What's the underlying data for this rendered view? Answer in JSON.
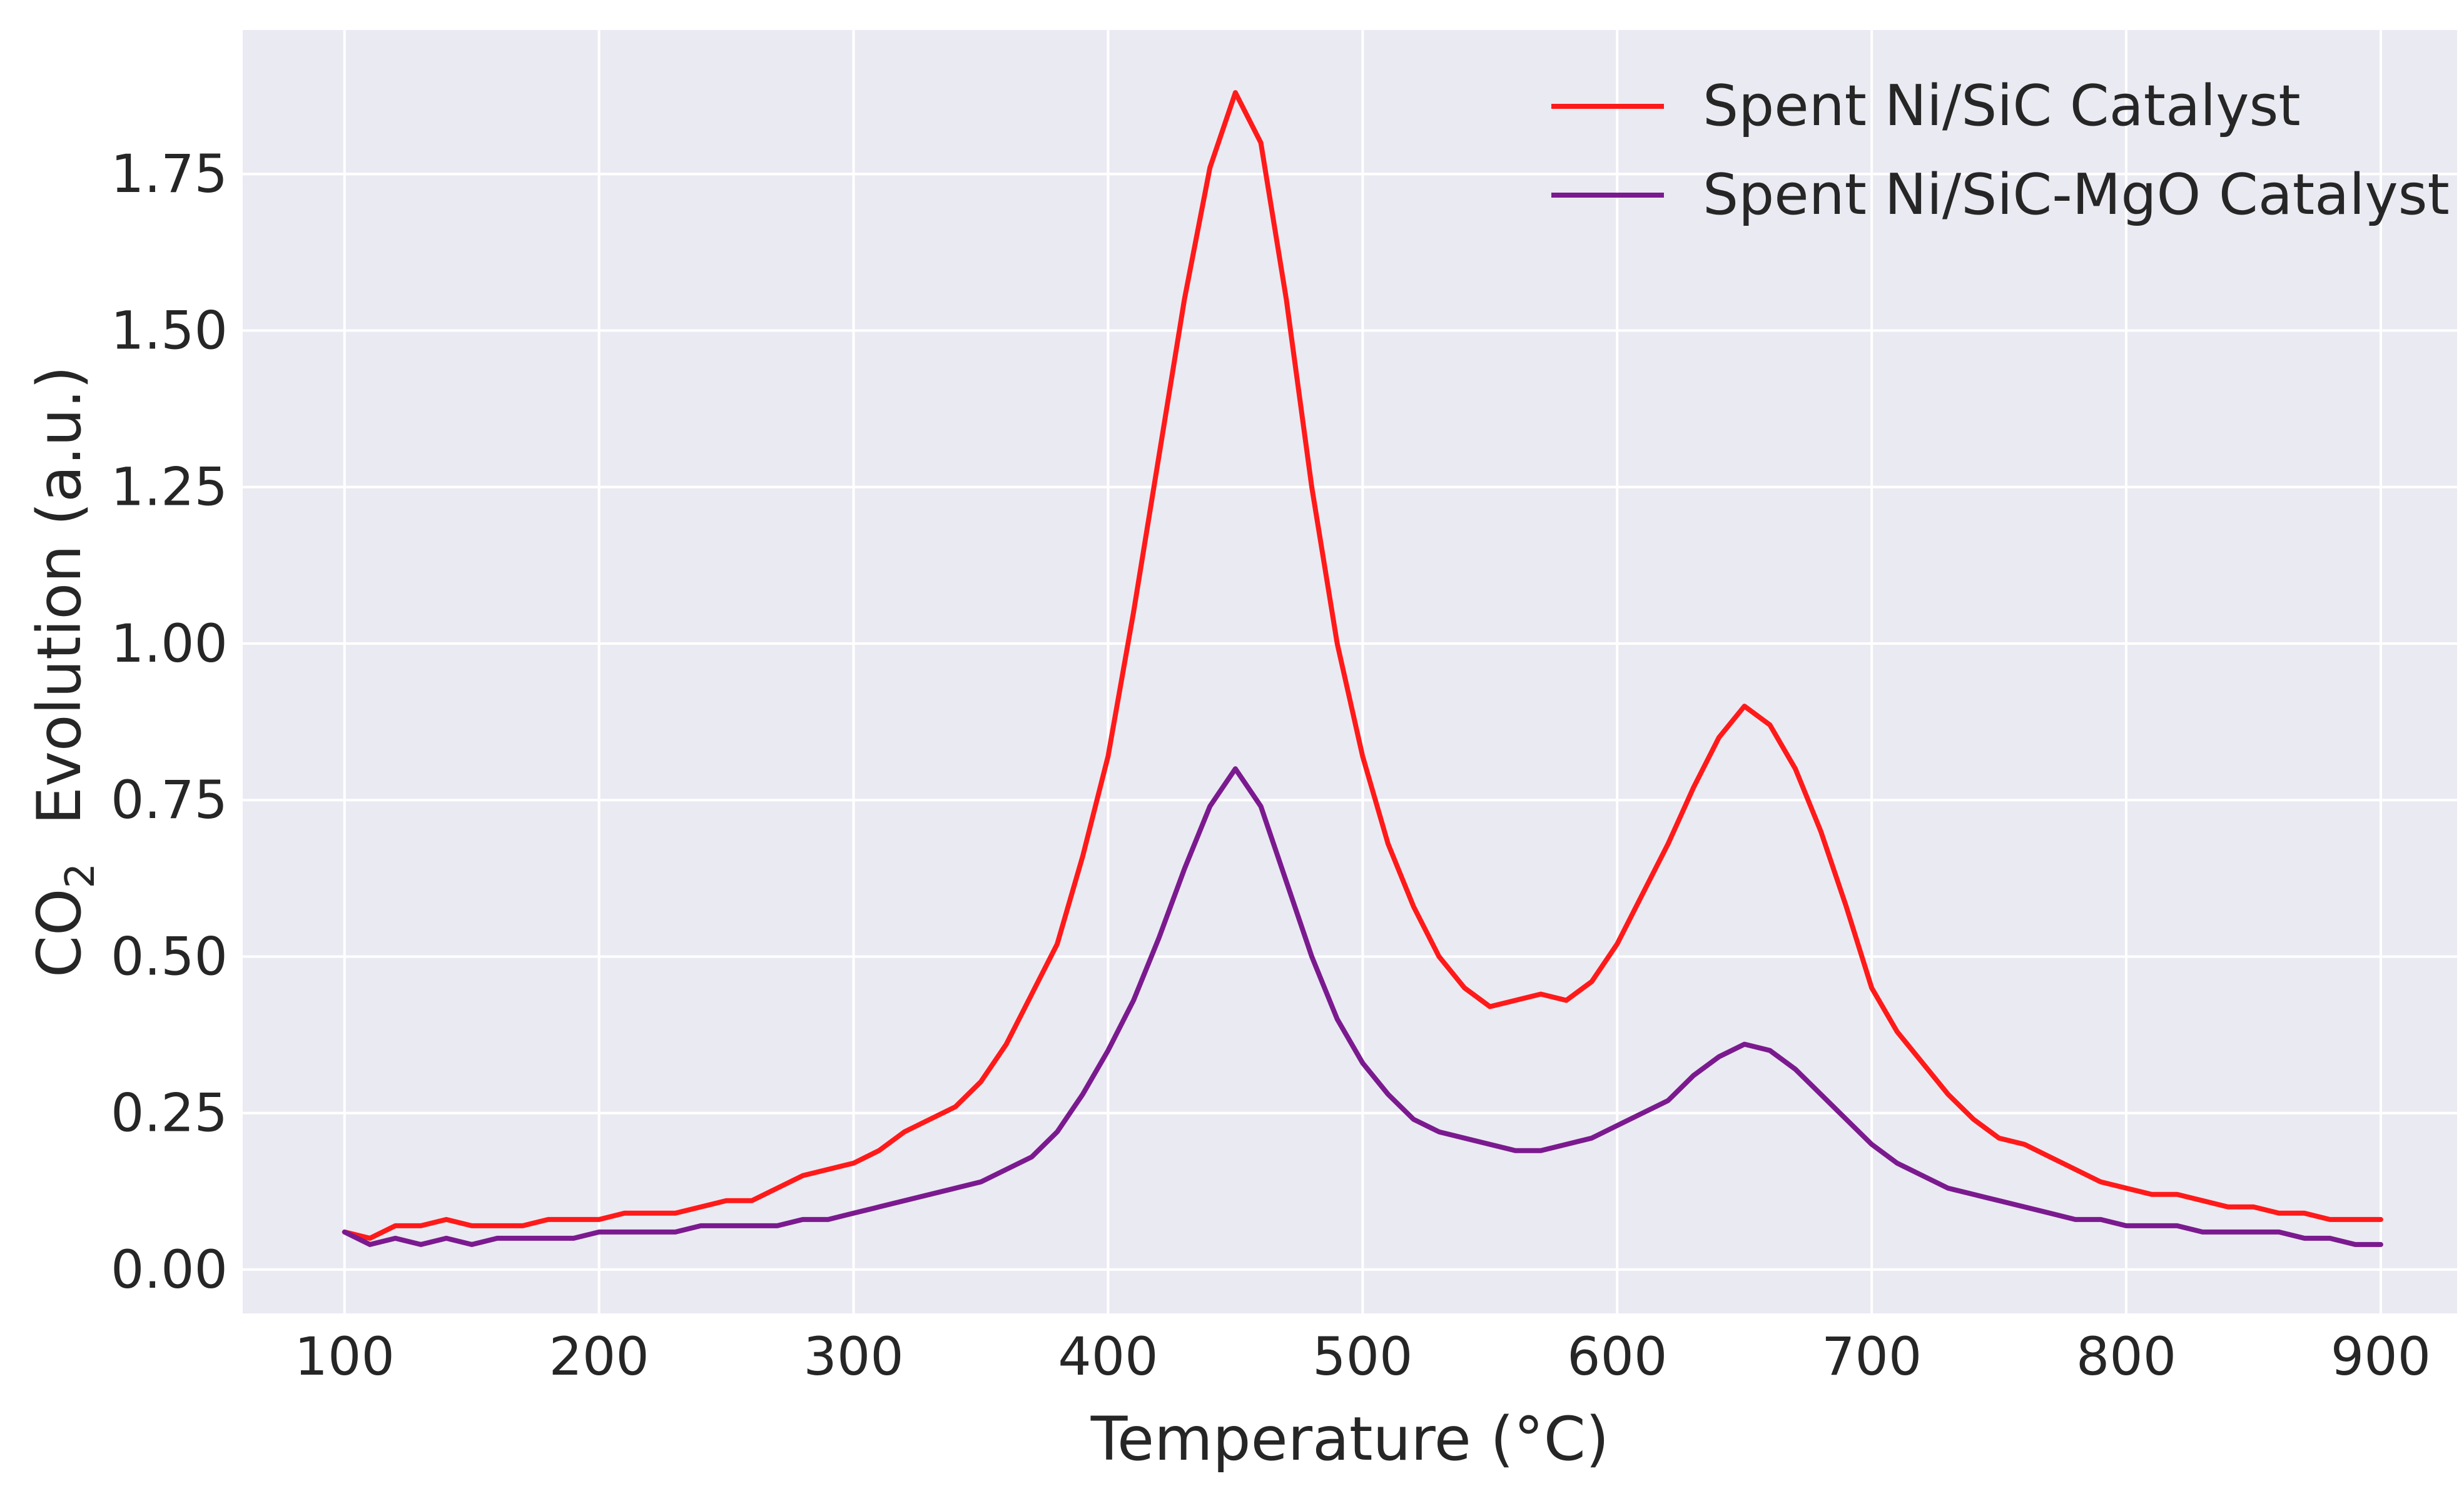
{
  "chart_data": {
    "type": "line",
    "title": "",
    "xlabel": "Temperature (°C)",
    "ylabel": {
      "prefix": "CO",
      "subscript": "2",
      "suffix": "  Evolution (a.u.)"
    },
    "xlim": [
      60,
      930
    ],
    "ylim": [
      -0.07,
      1.98
    ],
    "xticks": [
      100,
      200,
      300,
      400,
      500,
      600,
      700,
      800,
      900
    ],
    "xtick_labels": [
      "100",
      "200",
      "300",
      "400",
      "500",
      "600",
      "700",
      "800",
      "900"
    ],
    "yticks": [
      0.0,
      0.25,
      0.5,
      0.75,
      1.0,
      1.25,
      1.5,
      1.75
    ],
    "ytick_labels": [
      "0.00",
      "0.25",
      "0.50",
      "0.75",
      "1.00",
      "1.25",
      "1.50",
      "1.75"
    ],
    "grid": true,
    "legend_placement": "top-right",
    "colors": {
      "plot_background": "#eaeaf2",
      "grid": "#ffffff"
    },
    "series": [
      {
        "name": "Spent Ni/SiC Catalyst",
        "color": "#ff1a1a",
        "x": [
          100,
          110,
          120,
          130,
          140,
          150,
          160,
          170,
          180,
          190,
          200,
          210,
          220,
          230,
          240,
          250,
          260,
          270,
          280,
          290,
          300,
          310,
          320,
          330,
          340,
          350,
          360,
          370,
          380,
          390,
          400,
          410,
          420,
          430,
          440,
          450,
          460,
          470,
          480,
          490,
          500,
          510,
          520,
          530,
          540,
          550,
          560,
          570,
          580,
          590,
          600,
          610,
          620,
          630,
          640,
          650,
          660,
          670,
          680,
          690,
          700,
          710,
          720,
          730,
          740,
          750,
          760,
          770,
          780,
          790,
          800,
          810,
          820,
          830,
          840,
          850,
          860,
          870,
          880,
          890,
          900
        ],
        "y": [
          0.06,
          0.05,
          0.07,
          0.07,
          0.08,
          0.07,
          0.07,
          0.07,
          0.08,
          0.08,
          0.08,
          0.09,
          0.09,
          0.09,
          0.1,
          0.11,
          0.11,
          0.13,
          0.15,
          0.16,
          0.17,
          0.19,
          0.22,
          0.24,
          0.26,
          0.3,
          0.36,
          0.44,
          0.52,
          0.66,
          0.82,
          1.05,
          1.3,
          1.55,
          1.76,
          1.88,
          1.8,
          1.55,
          1.25,
          1.0,
          0.82,
          0.68,
          0.58,
          0.5,
          0.45,
          0.42,
          0.43,
          0.44,
          0.43,
          0.46,
          0.52,
          0.6,
          0.68,
          0.77,
          0.85,
          0.9,
          0.87,
          0.8,
          0.7,
          0.58,
          0.45,
          0.38,
          0.33,
          0.28,
          0.24,
          0.21,
          0.2,
          0.18,
          0.16,
          0.14,
          0.13,
          0.12,
          0.12,
          0.11,
          0.1,
          0.1,
          0.09,
          0.09,
          0.08,
          0.08,
          0.08
        ]
      },
      {
        "name": "Spent Ni/SiC-MgO Catalyst",
        "color": "#7b1a8f",
        "x": [
          100,
          110,
          120,
          130,
          140,
          150,
          160,
          170,
          180,
          190,
          200,
          210,
          220,
          230,
          240,
          250,
          260,
          270,
          280,
          290,
          300,
          310,
          320,
          330,
          340,
          350,
          360,
          370,
          380,
          390,
          400,
          410,
          420,
          430,
          440,
          450,
          460,
          470,
          480,
          490,
          500,
          510,
          520,
          530,
          540,
          550,
          560,
          570,
          580,
          590,
          600,
          610,
          620,
          630,
          640,
          650,
          660,
          670,
          680,
          690,
          700,
          710,
          720,
          730,
          740,
          750,
          760,
          770,
          780,
          790,
          800,
          810,
          820,
          830,
          840,
          850,
          860,
          870,
          880,
          890,
          900
        ],
        "y": [
          0.06,
          0.04,
          0.05,
          0.04,
          0.05,
          0.04,
          0.05,
          0.05,
          0.05,
          0.05,
          0.06,
          0.06,
          0.06,
          0.06,
          0.07,
          0.07,
          0.07,
          0.07,
          0.08,
          0.08,
          0.09,
          0.1,
          0.11,
          0.12,
          0.13,
          0.14,
          0.16,
          0.18,
          0.22,
          0.28,
          0.35,
          0.43,
          0.53,
          0.64,
          0.74,
          0.8,
          0.74,
          0.62,
          0.5,
          0.4,
          0.33,
          0.28,
          0.24,
          0.22,
          0.21,
          0.2,
          0.19,
          0.19,
          0.2,
          0.21,
          0.23,
          0.25,
          0.27,
          0.31,
          0.34,
          0.36,
          0.35,
          0.32,
          0.28,
          0.24,
          0.2,
          0.17,
          0.15,
          0.13,
          0.12,
          0.11,
          0.1,
          0.09,
          0.08,
          0.08,
          0.07,
          0.07,
          0.07,
          0.06,
          0.06,
          0.06,
          0.06,
          0.05,
          0.05,
          0.04,
          0.04
        ]
      }
    ]
  }
}
